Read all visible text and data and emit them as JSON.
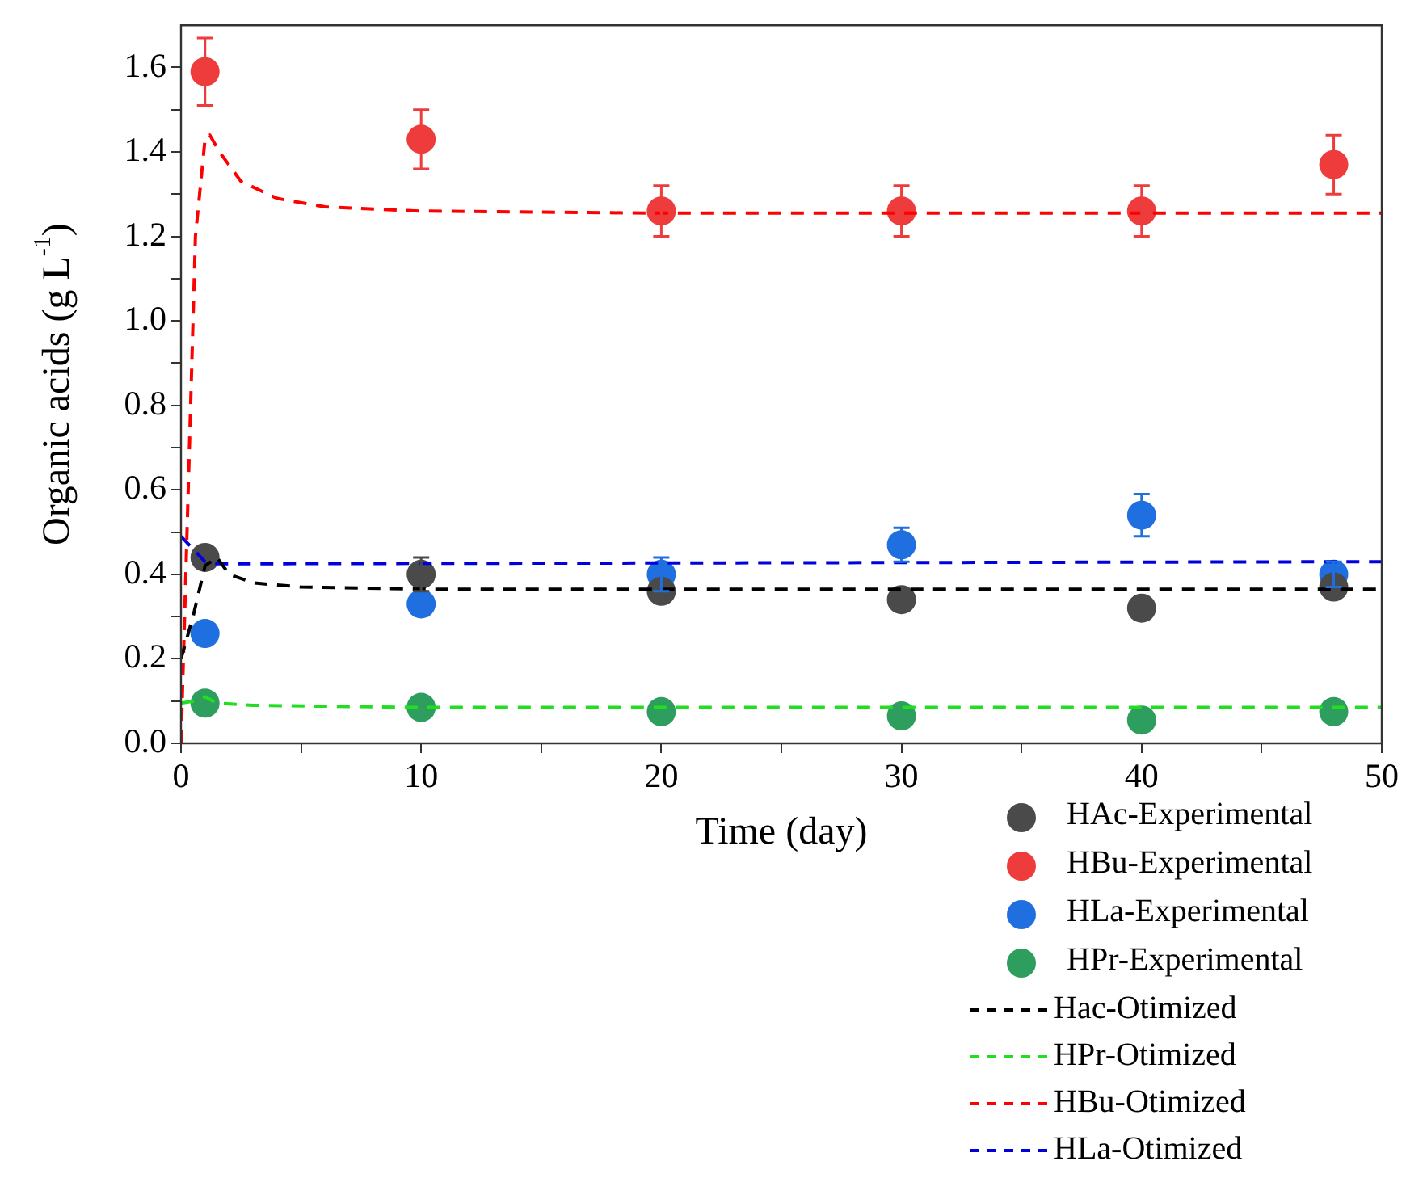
{
  "chart_data": {
    "type": "scatter",
    "xlabel": "Time (day)",
    "ylabel": "Organic acids (g L$^{-1}$)",
    "x": [
      1,
      10,
      20,
      30,
      40,
      48
    ],
    "xlim": [
      0,
      50
    ],
    "ylim": [
      0,
      1.7
    ],
    "xticks": [
      0,
      {
        "value": 5,
        "label": null
      },
      10,
      {
        "value": 15,
        "label": null
      },
      20,
      {
        "value": 25,
        "label": null
      },
      30,
      {
        "value": 35,
        "label": null
      },
      40,
      {
        "value": 45,
        "label": null
      },
      50
    ],
    "yticks": [
      {
        "value": 0,
        "label": "0.0"
      },
      {
        "value": 0.1,
        "label": null
      },
      {
        "value": 0.2,
        "label": "0.2"
      },
      {
        "value": 0.3,
        "label": null
      },
      {
        "value": 0.4,
        "label": "0.4"
      },
      {
        "value": 0.5,
        "label": null
      },
      {
        "value": 0.6,
        "label": "0.6"
      },
      {
        "value": 0.7,
        "label": null
      },
      {
        "value": 0.8,
        "label": "0.8"
      },
      {
        "value": 0.9,
        "label": null
      },
      {
        "value": 1,
        "label": "1.0"
      },
      {
        "value": 1.1,
        "label": null
      },
      {
        "value": 1.2,
        "label": "1.2"
      },
      {
        "value": 1.3,
        "label": null
      },
      {
        "value": 1.4,
        "label": "1.4"
      },
      {
        "value": 1.5,
        "label": null
      },
      {
        "value": 1.6,
        "label": "1.6"
      }
    ],
    "legend": "bottom right",
    "marker": "circle",
    "series": [
      {
        "name": "HAc-Experimental",
        "color": "#4a4a4a",
        "values": [
          0.44,
          0.4,
          0.36,
          0.34,
          0.32,
          0.37
        ],
        "errors": [
          null,
          0.04,
          null,
          null,
          null,
          null
        ]
      },
      {
        "name": "HBu-Experimental",
        "color": "#ee3b3b",
        "values": [
          1.59,
          1.43,
          1.26,
          1.26,
          1.26,
          1.37
        ],
        "errors": [
          0.08,
          0.07,
          0.06,
          0.06,
          0.06,
          0.07
        ]
      },
      {
        "name": "HLa-Experimental",
        "color": "#1f6fe0",
        "values": [
          0.26,
          0.33,
          0.4,
          0.47,
          0.54,
          0.4
        ],
        "errors": [
          null,
          null,
          0.04,
          0.04,
          0.05,
          0.03
        ]
      },
      {
        "name": "HPr-Experimental",
        "color": "#2e9e5e",
        "values": [
          0.095,
          0.085,
          0.075,
          0.065,
          0.055,
          0.075
        ]
      },
      {
        "type": "line",
        "name": "Hac-Otimized",
        "color": "#000000",
        "line_style": "dashed",
        "marker": "none",
        "x": [
          0,
          0.5,
          1,
          1.5,
          2,
          3,
          5,
          10,
          50
        ],
        "values": [
          0.2,
          0.3,
          0.42,
          0.44,
          0.4,
          0.38,
          0.37,
          0.365,
          0.365
        ]
      },
      {
        "type": "line",
        "name": "HPr-Otimized",
        "color": "#22dd22",
        "line_style": "dashed",
        "marker": "none",
        "x": [
          0,
          0.5,
          1,
          1.5,
          3,
          10,
          50
        ],
        "values": [
          0.095,
          0.1,
          0.11,
          0.095,
          0.09,
          0.085,
          0.085
        ]
      },
      {
        "type": "line",
        "name": "HBu-Otimized",
        "color": "#ff0000",
        "line_style": "dashed",
        "marker": "none",
        "x": [
          0,
          0.3,
          0.6,
          1,
          1.2,
          1.6,
          2.5,
          4,
          6,
          10,
          20,
          50
        ],
        "values": [
          0,
          0.6,
          1.2,
          1.43,
          1.44,
          1.4,
          1.33,
          1.29,
          1.27,
          1.26,
          1.255,
          1.255
        ]
      },
      {
        "type": "line",
        "name": "HLa-Otimized",
        "color": "#0000dd",
        "line_style": "dashed",
        "marker": "none",
        "x": [
          0,
          0.5,
          1,
          1.5,
          50
        ],
        "values": [
          0.49,
          0.46,
          0.43,
          0.425,
          0.43
        ]
      }
    ]
  }
}
